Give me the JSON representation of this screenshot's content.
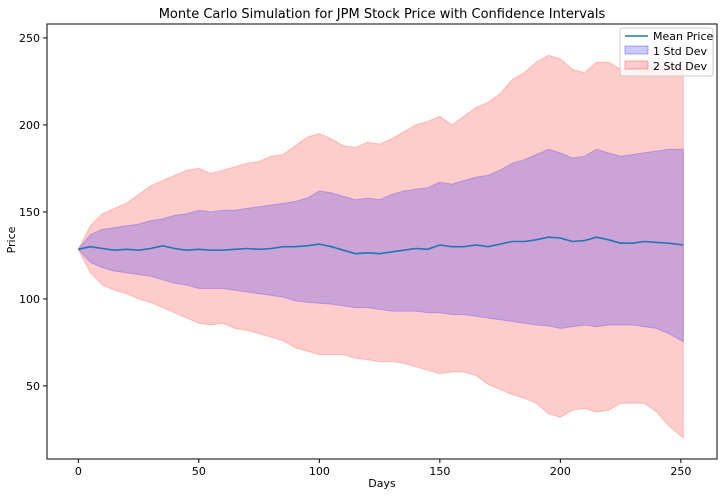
{
  "chart_data": {
    "type": "area",
    "title": "Monte Carlo Simulation for JPM Stock Price with Confidence Intervals",
    "xlabel": "Days",
    "ylabel": "Price",
    "xlim": [
      -13,
      265
    ],
    "ylim": [
      8,
      258
    ],
    "xticks": [
      0,
      50,
      100,
      150,
      200,
      250
    ],
    "yticks": [
      50,
      100,
      150,
      200,
      250
    ],
    "grid": false,
    "legend_position": "top-right",
    "x": [
      0,
      5,
      10,
      15,
      20,
      25,
      30,
      35,
      40,
      45,
      50,
      55,
      60,
      65,
      70,
      75,
      80,
      85,
      90,
      95,
      100,
      105,
      110,
      115,
      120,
      125,
      130,
      135,
      140,
      145,
      150,
      155,
      160,
      165,
      170,
      175,
      180,
      185,
      190,
      195,
      200,
      205,
      210,
      215,
      220,
      225,
      230,
      235,
      240,
      245,
      251
    ],
    "series": [
      {
        "name": "Mean Price",
        "color": "#1f77b4",
        "values": [
          128.5,
          130,
          129,
          128,
          128.5,
          128,
          129,
          130.5,
          129,
          128,
          128.5,
          128,
          128,
          128.5,
          129,
          128.5,
          129,
          130,
          130,
          130.5,
          131.5,
          130,
          128,
          126,
          126.5,
          126,
          127,
          128,
          129,
          128.5,
          131,
          130,
          130,
          131,
          130,
          131.5,
          133,
          133,
          134,
          135.5,
          135,
          133,
          133.5,
          135.5,
          134,
          132,
          132,
          133,
          132.5,
          132,
          131
        ]
      },
      {
        "name": "1 Std Dev",
        "color": "#0000ff",
        "lower": [
          128.5,
          121,
          118,
          116,
          115,
          114,
          113,
          111,
          109,
          108,
          106,
          106,
          106,
          105,
          104,
          103,
          102,
          101,
          99,
          98,
          97.5,
          97,
          96,
          95,
          95,
          94,
          93,
          93,
          93,
          92,
          92,
          91,
          91,
          90,
          89,
          88,
          87,
          86,
          85,
          84.5,
          83,
          84,
          85,
          84,
          85,
          85,
          85,
          84,
          83,
          80,
          75.5
        ],
        "upper": [
          128.5,
          137,
          140,
          141,
          142,
          143,
          145,
          146,
          148,
          149,
          151,
          150,
          151,
          151,
          152,
          153,
          154,
          155,
          156,
          158,
          162,
          161,
          159,
          157,
          158,
          157,
          160,
          162,
          163,
          164,
          167,
          166,
          168,
          170,
          171,
          174,
          178,
          180,
          183,
          186,
          184,
          181,
          182,
          186,
          184,
          182,
          183,
          184,
          185,
          186,
          186
        ]
      },
      {
        "name": "2 Std Dev",
        "color": "#ff0000",
        "lower": [
          128.5,
          115,
          108,
          105,
          103,
          100,
          98,
          95,
          92,
          89,
          86,
          85,
          86,
          83,
          82,
          80,
          78,
          76,
          72,
          70,
          68,
          68,
          68,
          66,
          65,
          64,
          64,
          63,
          61,
          59,
          57,
          58,
          58,
          56,
          51,
          48,
          45,
          43,
          40,
          34,
          32,
          36,
          37,
          35,
          36,
          40,
          40,
          40,
          35,
          27,
          20
        ],
        "upper": [
          128.5,
          142,
          149,
          152,
          155,
          160,
          165,
          168,
          171,
          174,
          175,
          172,
          174,
          176,
          178,
          179,
          182,
          183,
          188,
          193,
          195,
          192,
          188,
          187,
          190,
          189,
          192,
          196,
          200,
          202,
          205,
          200,
          205,
          210,
          213,
          218,
          226,
          230,
          236,
          240,
          238,
          232,
          230,
          236,
          236,
          232,
          232,
          234,
          234,
          234,
          234
        ]
      }
    ]
  }
}
